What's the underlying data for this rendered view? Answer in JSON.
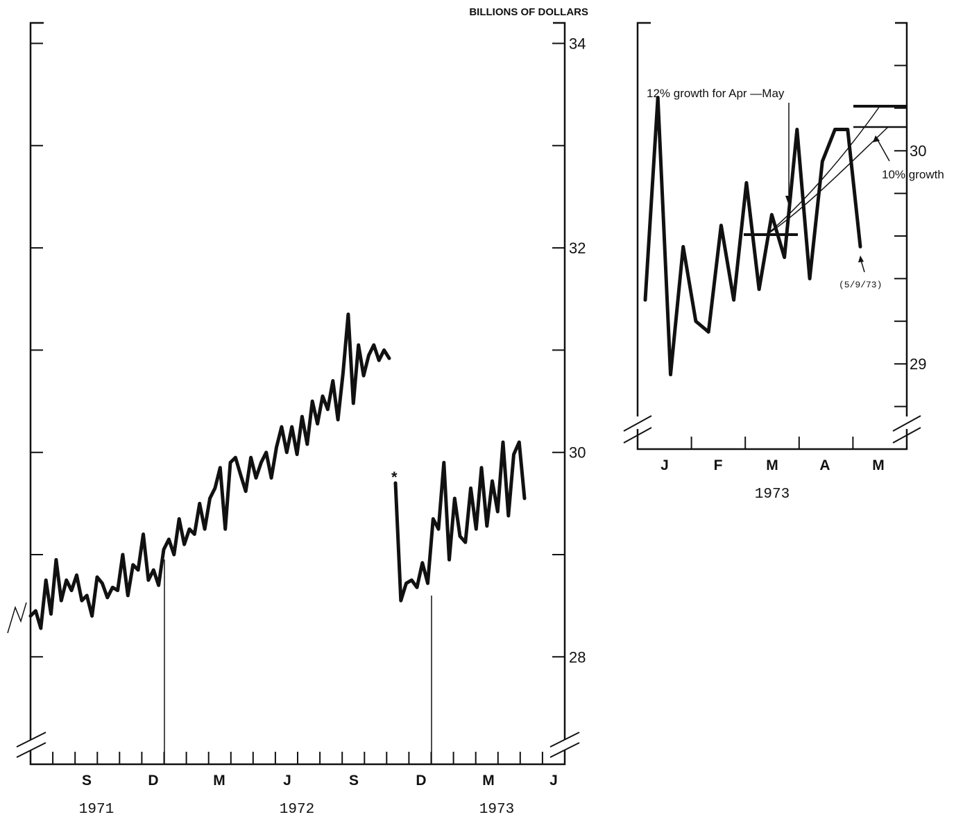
{
  "chart_data": [
    {
      "type": "line",
      "title": "",
      "ylabel": "BILLIONS OF DOLLARS",
      "ylim": [
        26.95,
        34.2
      ],
      "yticks": [
        28,
        30,
        32,
        34
      ],
      "ytick_labels": [
        "28",
        "30",
        "32",
        "34"
      ],
      "month_labels": [
        "S",
        "D",
        "M",
        "J",
        "S",
        "D",
        "M",
        "J"
      ],
      "year_labels": [
        "1971",
        "1972",
        "1973"
      ],
      "marker_label": "*",
      "series": [
        {
          "values_old_basis": [
            28.4,
            28.45,
            28.28,
            28.75,
            28.42,
            28.95,
            28.55,
            28.75,
            28.65,
            28.8,
            28.55,
            28.6,
            28.4,
            28.78,
            28.72,
            28.58,
            28.68,
            28.65,
            29.0,
            28.6,
            28.9,
            28.85,
            29.2,
            28.75,
            28.85,
            28.7,
            29.05,
            29.15,
            29.0,
            29.35,
            29.1,
            29.25,
            29.2,
            29.5,
            29.25,
            29.55,
            29.65,
            29.85,
            29.25,
            29.9,
            29.95,
            29.78,
            29.62,
            29.95,
            29.75,
            29.9,
            30.0,
            29.75,
            30.05,
            30.25,
            30.0,
            30.25,
            29.98,
            30.35,
            30.08,
            30.5,
            30.28,
            30.55,
            30.42,
            30.7,
            30.32,
            30.78,
            31.35,
            30.48,
            31.05,
            30.75,
            30.95,
            31.05,
            30.9,
            31.0,
            30.92
          ],
          "values_new_basis": [
            29.7,
            28.55,
            28.72,
            28.75,
            28.68,
            28.92,
            28.72,
            29.35,
            29.25,
            29.9,
            28.95,
            29.55,
            29.18,
            29.12,
            29.65,
            29.25,
            29.85,
            29.28,
            29.72,
            29.42,
            30.1,
            29.38,
            29.98,
            30.1,
            29.55
          ]
        }
      ]
    },
    {
      "type": "line",
      "ylim": [
        28.6,
        30.6
      ],
      "yticks": [
        29,
        30
      ],
      "ytick_labels": [
        "29",
        "30"
      ],
      "month_labels": [
        "J",
        "F",
        "M",
        "A",
        "M"
      ],
      "year_label": "1973",
      "series": [
        {
          "values": [
            29.3,
            30.25,
            28.95,
            29.55,
            29.2,
            29.15,
            29.65,
            29.3,
            29.85,
            29.35,
            29.7,
            29.5,
            30.1,
            29.4,
            29.95,
            30.1,
            30.1,
            29.55
          ]
        }
      ],
      "annotations": [
        "12% growth for Apr —May",
        "10% growth",
        "(5/9/73)"
      ]
    }
  ]
}
